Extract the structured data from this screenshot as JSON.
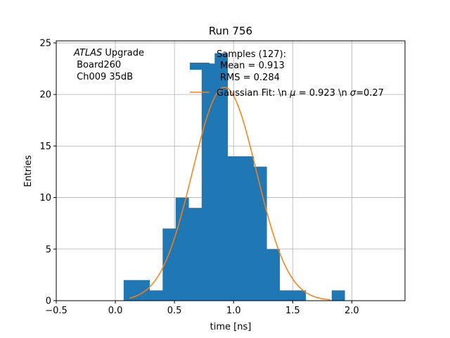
{
  "chart_data": {
    "type": "bar",
    "title": "Run 756",
    "xlabel": "time [ns]",
    "ylabel": "Entries",
    "xlim": [
      -0.5,
      2.45
    ],
    "ylim": [
      0,
      25.2
    ],
    "grid": true,
    "x_ticks": [
      -0.5,
      0.0,
      0.5,
      1.0,
      1.5,
      2.0
    ],
    "x_tick_labels": [
      "−0.5",
      "0.0",
      "0.5",
      "1.0",
      "1.5",
      "2.0"
    ],
    "y_ticks": [
      0,
      5,
      10,
      15,
      20,
      25
    ],
    "y_tick_labels": [
      "0",
      "5",
      "10",
      "15",
      "20",
      "25"
    ],
    "histogram": {
      "bin_edges": [
        0.07,
        0.18,
        0.29,
        0.4,
        0.51,
        0.62,
        0.73,
        0.84,
        0.95,
        1.06,
        1.17,
        1.28,
        1.39,
        1.5,
        1.61,
        1.72,
        1.83,
        1.94
      ],
      "counts": [
        2,
        2,
        1,
        7,
        10,
        9,
        23,
        24,
        14,
        14,
        13,
        5,
        1,
        1,
        0,
        0,
        1
      ],
      "color": "#1f77b4"
    },
    "series": [
      {
        "name": "Gaussian Fit: \\n $\\mu$ = 0.923 \\n $\\sigma$=0.27",
        "type": "line",
        "mu": 0.923,
        "sigma": 0.27,
        "amplitude": 20.7,
        "x_range": [
          0.12,
          1.82
        ],
        "color": "#ff7f0e"
      }
    ],
    "legend": {
      "placement": "top-right",
      "samples_title": "Samples (127):",
      "samples_mean": "Mean = 0.913",
      "samples_rms": "RMS = 0.284",
      "fit_prefix": "Gaussian Fit: \\n ",
      "fit_mu_symbol": "μ",
      "fit_mu_value": " = 0.923 \\n ",
      "fit_sigma_symbol": "σ",
      "fit_sigma_value": "=0.27"
    },
    "annotation": {
      "experiment": "ATLAS",
      "experiment_suffix": " Upgrade",
      "board": " Board260",
      "channel": " Ch009 35dB"
    }
  }
}
